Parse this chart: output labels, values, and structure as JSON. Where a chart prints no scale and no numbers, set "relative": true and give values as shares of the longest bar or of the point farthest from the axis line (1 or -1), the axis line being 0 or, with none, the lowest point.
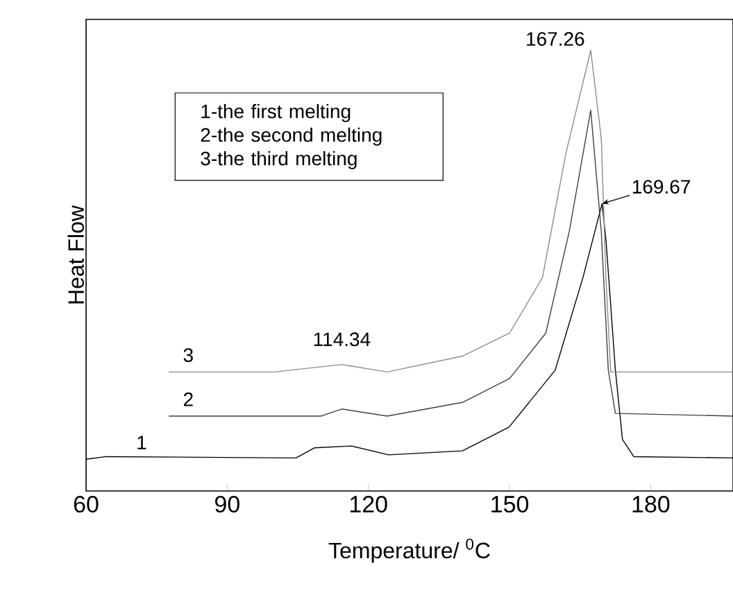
{
  "chart_data": {
    "type": "line",
    "relative": true,
    "xlabel": "Temperature/ $^{0}$C",
    "ylabel": "Heat Flow",
    "xlim": [
      60,
      197.5
    ],
    "xticks": [
      60,
      90,
      120,
      150,
      180
    ],
    "grid": false,
    "marker": "none",
    "series": [
      {
        "name": "1",
        "color": "#000000",
        "x": [
          60,
          64.3,
          104.6,
          108.6,
          116.4,
          124.3,
          140,
          149.9,
          159.7,
          165.6,
          169.67,
          170.5,
          172.5,
          174,
          176.4,
          197.5
        ],
        "values": [
          0.072,
          0.078,
          0.075,
          0.098,
          0.102,
          0.082,
          0.091,
          0.145,
          0.274,
          0.484,
          0.652,
          0.57,
          0.274,
          0.117,
          0.078,
          0.075
        ]
      },
      {
        "name": "2",
        "color": "#404040",
        "x": [
          77.6,
          110,
          114.34,
          124,
          140,
          150,
          157.7,
          162.7,
          167.26,
          169.5,
          171,
          172.5,
          197.5
        ],
        "values": [
          0.17,
          0.17,
          0.186,
          0.17,
          0.201,
          0.255,
          0.358,
          0.589,
          0.864,
          0.589,
          0.274,
          0.176,
          0.17
        ]
      },
      {
        "name": "3",
        "color": "#8c8c8c",
        "x": [
          77.6,
          100,
          114.34,
          124,
          140,
          150,
          157,
          162,
          167.26,
          169.5,
          170.5,
          171.5,
          197.5
        ],
        "values": [
          0.27,
          0.27,
          0.287,
          0.27,
          0.306,
          0.358,
          0.484,
          0.767,
          1.0,
          0.8,
          0.484,
          0.27,
          0.27
        ]
      }
    ],
    "annotations": [
      "1-the first melting",
      "2-the second melting",
      "3-the third melting",
      {
        "text": "114.34",
        "x": 114.34,
        "y": 0.287
      },
      {
        "text": "167.26",
        "x": 167.26,
        "y": 1.0
      },
      {
        "text": "169.67",
        "x": 169.67,
        "y": 0.652
      }
    ]
  }
}
